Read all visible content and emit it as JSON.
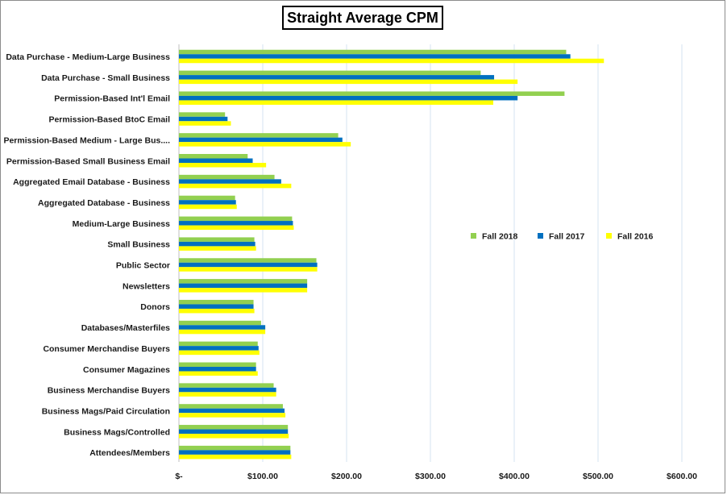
{
  "chart_data": {
    "type": "bar",
    "orientation": "horizontal",
    "title": "Straight Average CPM",
    "categories": [
      "Data Purchase - Medium-Large Business",
      "Data Purchase - Small Business",
      "Permission-Based Int'l Email",
      "Permission-Based  BtoC Email",
      "Permission-Based Medium - Large Bus....",
      "Permission-Based Small Business Email",
      "Aggregated Email Database - Business",
      "Aggregated Database - Business",
      "Medium-Large Business",
      "Small Business",
      "Public Sector",
      "Newsletters",
      "Donors",
      "Databases/Masterfiles",
      "Consumer Merchandise Buyers",
      "Consumer Magazines",
      "Business Merchandise Buyers",
      "Business Mags/Paid Circulation",
      "Business Mags/Controlled",
      "Attendees/Members"
    ],
    "series": [
      {
        "name": "Fall 2018",
        "color": "#92d050",
        "values": [
          462,
          360,
          460,
          55,
          190,
          82,
          114,
          67,
          135,
          90,
          164,
          153,
          89,
          98,
          94,
          92,
          113,
          124,
          130,
          133
        ]
      },
      {
        "name": "Fall 2017",
        "color": "#0070c0",
        "values": [
          467,
          376,
          404,
          58,
          195,
          88,
          122,
          68,
          136,
          91,
          165,
          153,
          89,
          103,
          95,
          92,
          116,
          126,
          130,
          133
        ]
      },
      {
        "name": "Fall 2016",
        "color": "#ffff00",
        "values": [
          507,
          404,
          375,
          62,
          205,
          104,
          134,
          69,
          137,
          92,
          165,
          153,
          90,
          103,
          96,
          94,
          116,
          127,
          131,
          134
        ]
      }
    ],
    "xaxis": {
      "ticks": [
        0,
        100,
        200,
        300,
        400,
        500,
        600
      ],
      "tick_labels": [
        "$-",
        "$100.00",
        "$200.00",
        "$300.00",
        "$400.00",
        "$500.00",
        "$600.00"
      ],
      "range": [
        0,
        600
      ]
    },
    "grid": true,
    "legend_position": "right"
  }
}
